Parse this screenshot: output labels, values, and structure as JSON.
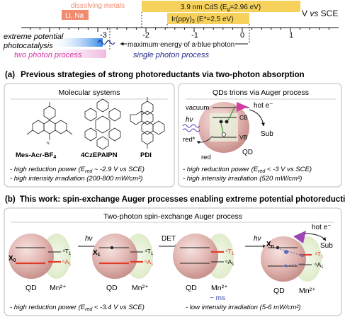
{
  "scale": {
    "unit_label": "V vs SCE",
    "ticks": [
      "-3",
      "-2",
      "-1",
      "0",
      "1"
    ],
    "dissolving_metals": "dissolving metals",
    "li_na": "Li, Na",
    "cds_prefix": "3.9 nm CdS (E",
    "cds_sub": "g",
    "cds_suffix": "=2.96 eV)",
    "ir_prefix": "Ir(ppy)",
    "ir_sub": "3",
    "ir_suffix": " (E*=2.5 eV)",
    "extreme_1": "extreme potential",
    "extreme_2": "photocatalysis",
    "max_energy": "maximum energy of a blue photon",
    "two_photon": "two photon process",
    "single_photon": "single photon process"
  },
  "section_a": {
    "letter": "(a)",
    "title": "Previous strategies of strong photoreductants via two-photon absorption",
    "molecular": {
      "header": "Molecular systems",
      "mol1": "Mes-Acr-BF",
      "mol1_sub": "4",
      "mol2": "4CzEPAIPN",
      "mol3": "PDI",
      "b1": "- high reduction power (E",
      "b1_sub": "red",
      "b1_rest": " ~ -2.9 V vs SCE)",
      "b2": "- high intensity irradiation (200-800 mW/cm²)"
    },
    "qd": {
      "header": "QDs trions via Auger process",
      "vacuum": "vacuum",
      "hot_e": "hot e⁻",
      "cb": "CB",
      "vb": "VB",
      "sub": "Sub",
      "hv": "hν",
      "red_star": "red*",
      "red": "red",
      "qd_label": "QD",
      "b1": "- high reduction power (E",
      "b1_sub": "red",
      "b1_rest": " < -3 V vs SCE)",
      "b2": "- high intensity irradiation (520 mW/cm²)"
    }
  },
  "section_b": {
    "letter": "(b)",
    "title": "This work: spin-exchange Auger processes enabling extreme potential photoreduction",
    "header": "Two-photon spin-exchange Auger process",
    "x0": "X",
    "x0_sub": "0",
    "x1": "X",
    "x1_sub": "1",
    "xn": "X",
    "xn_sub": "n",
    "t1": "⁴T",
    "t1_sub": "1",
    "a1": "⁶A",
    "a1_sub": "1",
    "hv": "hν",
    "det": "DET",
    "ms": "~ ms",
    "qd_label": "QD",
    "mn_label": "Mn²⁺",
    "hot_e": "hot e⁻",
    "sub": "Sub",
    "b1": "- high reduction power (E",
    "b1_sub": "red",
    "b1_rest": " < -3.4 V vs SCE)",
    "b2": "- low intensity irradiation (5-6 mW/cm²)"
  },
  "colors": {
    "salmon": "#f08b6f",
    "yellow": "#f6d25c",
    "blue": "#1d6fd8",
    "magenta": "#d63ba8",
    "navy": "#232c8e",
    "red": "#e03c2a",
    "orange": "#f08a2a",
    "qd_pink": "#e2b8b5",
    "mn_green": "#e4efd2",
    "purple": "#a045b8"
  }
}
